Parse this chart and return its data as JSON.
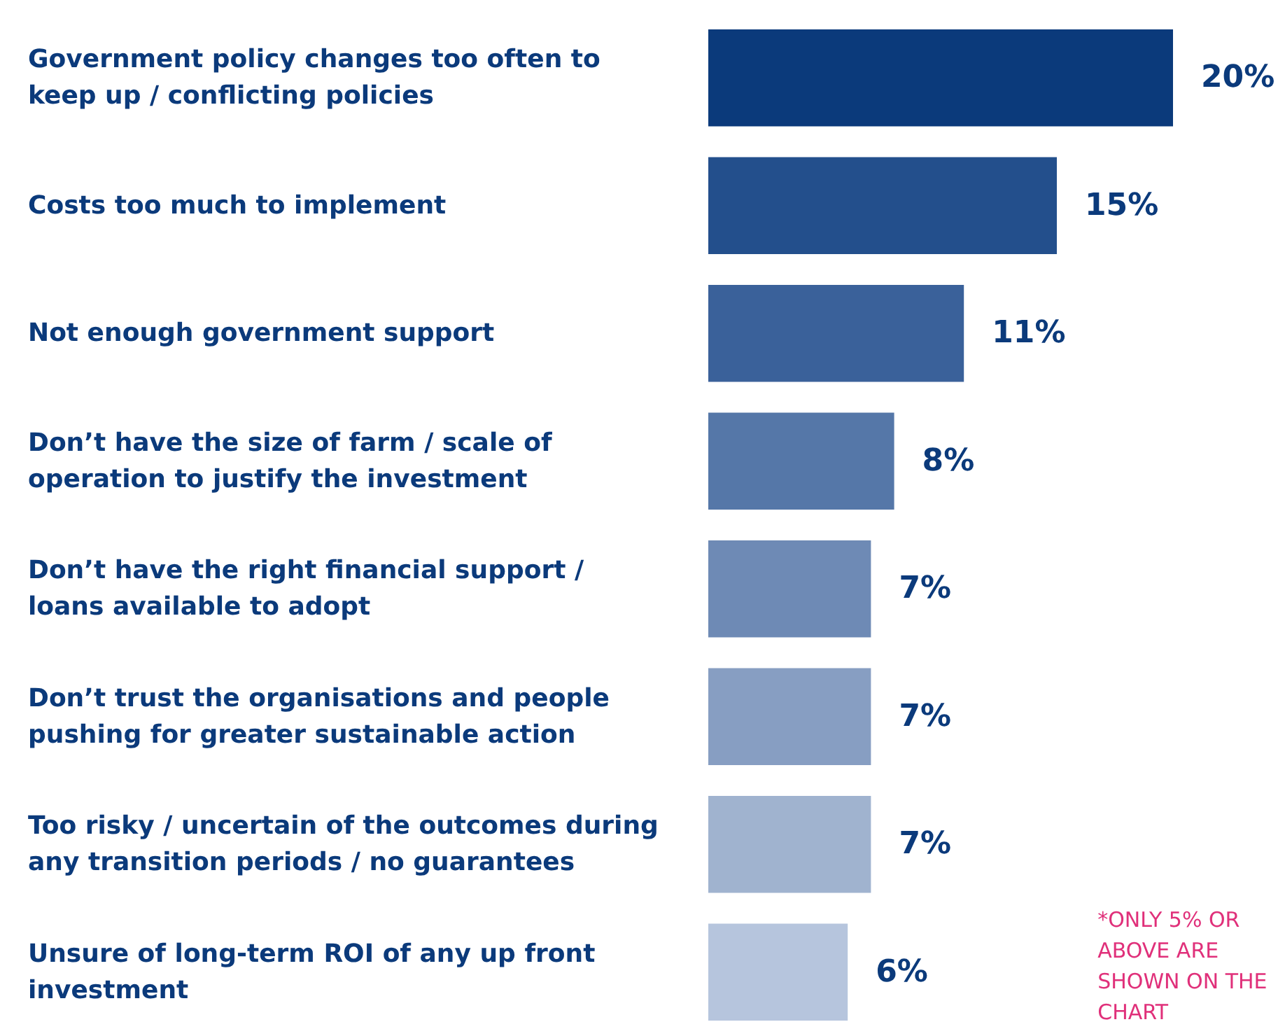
{
  "chart_data": {
    "type": "bar",
    "orientation": "horizontal",
    "categories": [
      "Government policy changes too often to keep up / conflicting policies",
      "Costs too much to implement",
      "Not enough government support",
      "Don’t have the size of farm / scale of operation to justify the investment",
      "Don’t have the right financial support / loans available to adopt",
      "Don’t trust the organisations and people pushing for greater sustainable action",
      "Too risky / uncertain of the outcomes during any transition periods / no guarantees",
      "Unsure of long-term ROI of any up front investment"
    ],
    "values": [
      20,
      15,
      11,
      8,
      7,
      7,
      7,
      6
    ],
    "colors": [
      "#0b3a7b",
      "#234f8c",
      "#3a619a",
      "#5577a8",
      "#6e8ab5",
      "#879ec2",
      "#a0b3cf",
      "#b6c5dd"
    ],
    "value_labels": [
      "20%",
      "15%",
      "11%",
      "8%",
      "7%",
      "7%",
      "7%",
      "6%"
    ],
    "annotations": [
      "*ONLY 5% OR ABOVE ARE SHOWN ON THE CHART"
    ]
  }
}
